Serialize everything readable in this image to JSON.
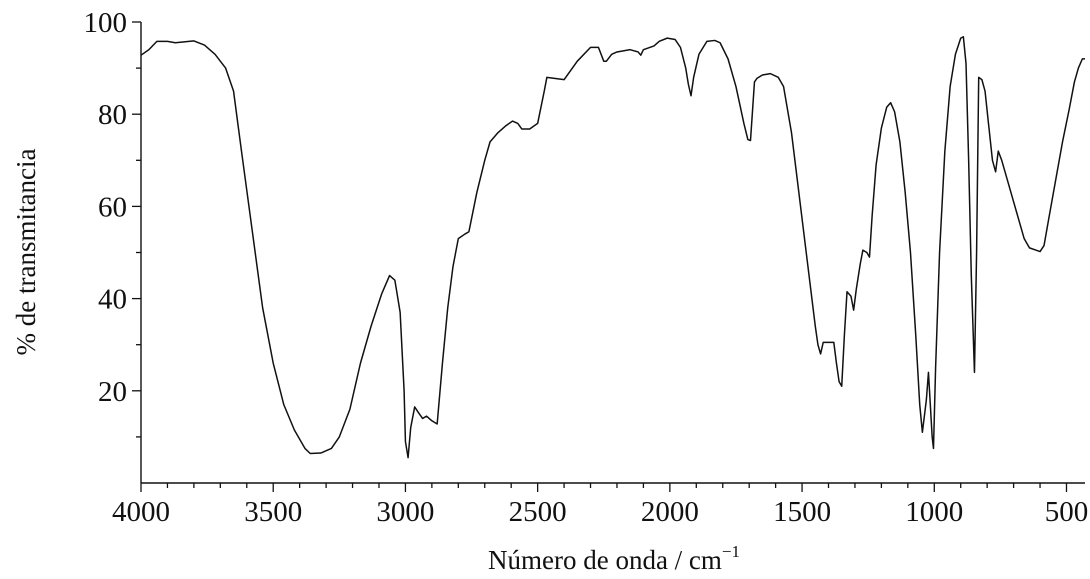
{
  "chart_data": {
    "type": "line",
    "title": "",
    "xlabel": "Número de onda / cm",
    "xlabel_superscript": "−1",
    "ylabel": "% de transmitancia",
    "xlim": [
      4000,
      430
    ],
    "ylim": [
      0,
      100
    ],
    "x_reversed": true,
    "grid": false,
    "legend": "none",
    "x_ticks": [
      {
        "value": 4000,
        "label": "4000"
      },
      {
        "value": 3500,
        "label": "3500"
      },
      {
        "value": 3000,
        "label": "3000"
      },
      {
        "value": 2500,
        "label": "2500"
      },
      {
        "value": 2000,
        "label": "2000"
      },
      {
        "value": 1500,
        "label": "1500"
      },
      {
        "value": 1000,
        "label": "1000"
      },
      {
        "value": 500,
        "label": "500"
      }
    ],
    "y_ticks": [
      {
        "value": 100,
        "label": "100"
      },
      {
        "value": 80,
        "label": "80"
      },
      {
        "value": 60,
        "label": "60"
      },
      {
        "value": 40,
        "label": "40"
      },
      {
        "value": 20,
        "label": "20"
      }
    ],
    "series": [
      {
        "color": "#111111",
        "points": [
          [
            4000,
            92.8
          ],
          [
            3970,
            94.0
          ],
          [
            3940,
            95.8
          ],
          [
            3900,
            95.8
          ],
          [
            3870,
            95.5
          ],
          [
            3800,
            95.9
          ],
          [
            3760,
            95.0
          ],
          [
            3720,
            93.0
          ],
          [
            3680,
            90.0
          ],
          [
            3650,
            85.0
          ],
          [
            3620,
            72.0
          ],
          [
            3580,
            55.0
          ],
          [
            3540,
            38.0
          ],
          [
            3500,
            26.0
          ],
          [
            3460,
            17.0
          ],
          [
            3420,
            11.5
          ],
          [
            3380,
            7.5
          ],
          [
            3360,
            6.4
          ],
          [
            3320,
            6.5
          ],
          [
            3280,
            7.5
          ],
          [
            3250,
            10.0
          ],
          [
            3210,
            16.0
          ],
          [
            3170,
            26.0
          ],
          [
            3130,
            34.0
          ],
          [
            3090,
            41.0
          ],
          [
            3060,
            45.0
          ],
          [
            3040,
            44.0
          ],
          [
            3020,
            37.0
          ],
          [
            3005,
            20.0
          ],
          [
            3000,
            9.0
          ],
          [
            2990,
            5.5
          ],
          [
            2980,
            12.0
          ],
          [
            2965,
            16.5
          ],
          [
            2950,
            15.2
          ],
          [
            2935,
            14.0
          ],
          [
            2920,
            14.5
          ],
          [
            2900,
            13.5
          ],
          [
            2880,
            12.8
          ],
          [
            2860,
            26.0
          ],
          [
            2840,
            38.0
          ],
          [
            2820,
            47.0
          ],
          [
            2800,
            53.0
          ],
          [
            2775,
            54.0
          ],
          [
            2760,
            54.5
          ],
          [
            2730,
            63.0
          ],
          [
            2700,
            70.0
          ],
          [
            2680,
            74.0
          ],
          [
            2650,
            76.0
          ],
          [
            2620,
            77.5
          ],
          [
            2595,
            78.5
          ],
          [
            2575,
            78.0
          ],
          [
            2560,
            76.8
          ],
          [
            2530,
            76.8
          ],
          [
            2500,
            78.0
          ],
          [
            2475,
            85.0
          ],
          [
            2465,
            88.0
          ],
          [
            2400,
            87.5
          ],
          [
            2350,
            91.5
          ],
          [
            2300,
            94.5
          ],
          [
            2270,
            94.5
          ],
          [
            2250,
            91.5
          ],
          [
            2240,
            91.5
          ],
          [
            2220,
            93.0
          ],
          [
            2200,
            93.5
          ],
          [
            2150,
            94.0
          ],
          [
            2120,
            93.5
          ],
          [
            2110,
            92.8
          ],
          [
            2100,
            94.0
          ],
          [
            2060,
            94.8
          ],
          [
            2040,
            95.8
          ],
          [
            2010,
            96.5
          ],
          [
            1980,
            96.2
          ],
          [
            1960,
            94.5
          ],
          [
            1940,
            90.0
          ],
          [
            1930,
            86.5
          ],
          [
            1920,
            84.0
          ],
          [
            1910,
            88.0
          ],
          [
            1890,
            93.0
          ],
          [
            1860,
            95.8
          ],
          [
            1830,
            96.0
          ],
          [
            1810,
            95.5
          ],
          [
            1780,
            92.0
          ],
          [
            1750,
            86.0
          ],
          [
            1720,
            78.0
          ],
          [
            1705,
            74.5
          ],
          [
            1695,
            74.3
          ],
          [
            1680,
            87.0
          ],
          [
            1670,
            87.8
          ],
          [
            1650,
            88.5
          ],
          [
            1620,
            88.8
          ],
          [
            1590,
            88.0
          ],
          [
            1570,
            86.0
          ],
          [
            1540,
            76.0
          ],
          [
            1510,
            62.0
          ],
          [
            1480,
            48.0
          ],
          [
            1450,
            34.0
          ],
          [
            1440,
            30.0
          ],
          [
            1430,
            28.0
          ],
          [
            1420,
            30.5
          ],
          [
            1400,
            30.5
          ],
          [
            1380,
            30.5
          ],
          [
            1370,
            26.0
          ],
          [
            1360,
            22.0
          ],
          [
            1350,
            21.0
          ],
          [
            1340,
            32.0
          ],
          [
            1330,
            41.5
          ],
          [
            1315,
            40.5
          ],
          [
            1305,
            37.5
          ],
          [
            1295,
            42.0
          ],
          [
            1280,
            47.5
          ],
          [
            1270,
            50.5
          ],
          [
            1255,
            50.0
          ],
          [
            1245,
            49.0
          ],
          [
            1235,
            58.0
          ],
          [
            1220,
            69.0
          ],
          [
            1200,
            77.0
          ],
          [
            1180,
            81.5
          ],
          [
            1165,
            82.5
          ],
          [
            1150,
            80.5
          ],
          [
            1130,
            74.0
          ],
          [
            1110,
            63.0
          ],
          [
            1090,
            50.0
          ],
          [
            1070,
            32.0
          ],
          [
            1055,
            17.0
          ],
          [
            1045,
            11.0
          ],
          [
            1030,
            18.0
          ],
          [
            1022,
            24.0
          ],
          [
            1015,
            17.0
          ],
          [
            1008,
            10.0
          ],
          [
            1003,
            7.5
          ],
          [
            995,
            25.0
          ],
          [
            980,
            50.0
          ],
          [
            960,
            72.0
          ],
          [
            940,
            86.0
          ],
          [
            920,
            93.0
          ],
          [
            900,
            96.5
          ],
          [
            890,
            96.8
          ],
          [
            880,
            91.0
          ],
          [
            870,
            70.0
          ],
          [
            860,
            45.0
          ],
          [
            848,
            24.0
          ],
          [
            840,
            50.0
          ],
          [
            832,
            88.0
          ],
          [
            820,
            87.5
          ],
          [
            808,
            85.0
          ],
          [
            795,
            78.0
          ],
          [
            780,
            70.0
          ],
          [
            768,
            67.5
          ],
          [
            758,
            72.0
          ],
          [
            745,
            70.0
          ],
          [
            720,
            65.0
          ],
          [
            700,
            61.0
          ],
          [
            680,
            57.0
          ],
          [
            660,
            53.0
          ],
          [
            640,
            51.0
          ],
          [
            615,
            50.5
          ],
          [
            600,
            50.2
          ],
          [
            585,
            51.5
          ],
          [
            565,
            58.0
          ],
          [
            540,
            66.0
          ],
          [
            515,
            74.0
          ],
          [
            490,
            81.0
          ],
          [
            470,
            87.0
          ],
          [
            455,
            90.0
          ],
          [
            440,
            92.0
          ],
          [
            430,
            92.0
          ]
        ]
      }
    ]
  }
}
